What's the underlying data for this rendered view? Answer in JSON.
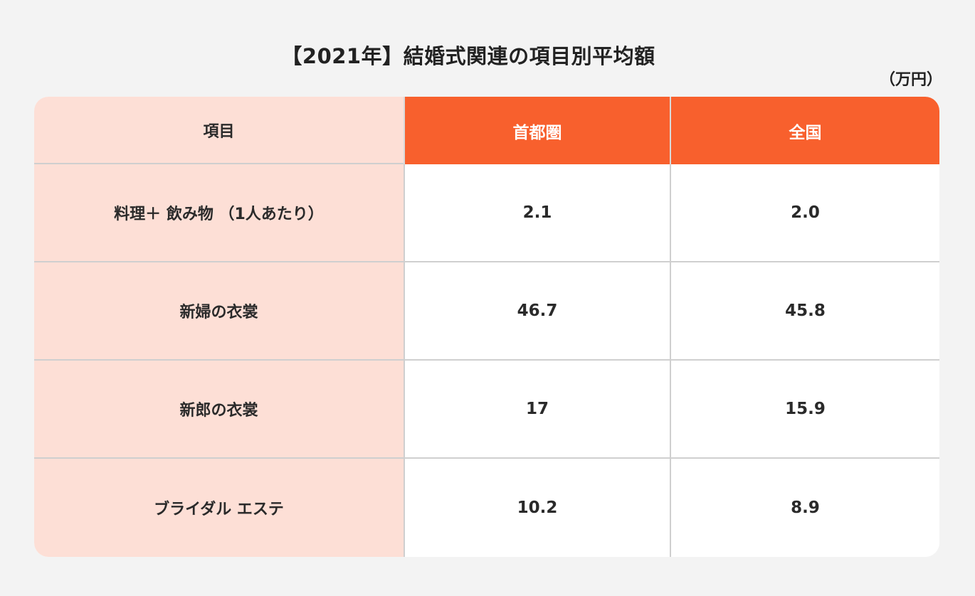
{
  "title": "【2021年】結婚式関連の項目別平均額",
  "unit": "（万円）",
  "colors": {
    "background": "#f3f3f3",
    "header_accent": "#f8602d",
    "item_column": "#fddfd6",
    "value_cells": "#ffffff",
    "grid_lines": "#cfcfcf",
    "text": "#2a2a2a"
  },
  "table": {
    "headers": [
      "項目",
      "首都圏",
      "全国"
    ],
    "rows": [
      {
        "item": "料理＋ 飲み物 （1人あたり）",
        "shutoken": "2.1",
        "zenkoku": "2.0"
      },
      {
        "item": "新婦の衣裳",
        "shutoken": "46.7",
        "zenkoku": "45.8"
      },
      {
        "item": "新郎の衣裳",
        "shutoken": "17",
        "zenkoku": "15.9"
      },
      {
        "item": "ブライダル エステ",
        "shutoken": "10.2",
        "zenkoku": "8.9"
      }
    ]
  },
  "chart_data": {
    "type": "table",
    "title": "【2021年】結婚式関連の項目別平均額",
    "unit": "万円",
    "columns": [
      "項目",
      "首都圏",
      "全国"
    ],
    "categories": [
      "料理＋ 飲み物 （1人あたり）",
      "新婦の衣裳",
      "新郎の衣裳",
      "ブライダル エステ"
    ],
    "series": [
      {
        "name": "首都圏",
        "values": [
          2.1,
          46.7,
          17,
          10.2
        ]
      },
      {
        "name": "全国",
        "values": [
          2.0,
          45.8,
          15.9,
          8.9
        ]
      }
    ]
  }
}
